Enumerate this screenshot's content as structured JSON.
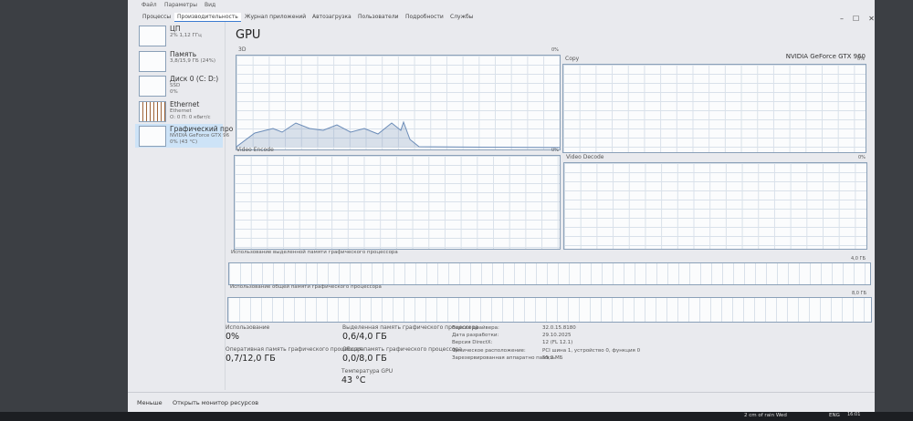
{
  "menu": [
    "Файл",
    "Параметры",
    "Вид"
  ],
  "tabs": [
    "Процессы",
    "Производительность",
    "Журнал приложений",
    "Автозагрузка",
    "Пользователи",
    "Подробности",
    "Службы"
  ],
  "sidebar": [
    {
      "title": "ЦП",
      "lines": [
        "2% 1,12 ГГц"
      ]
    },
    {
      "title": "Память",
      "lines": [
        "3,8/15,9 ГБ (24%)"
      ]
    },
    {
      "title": "Диск 0 (C: D:)",
      "lines": [
        "SSD",
        "0%"
      ]
    },
    {
      "title": "Ethernet",
      "lines": [
        "Ethernet",
        "О: 0 П: 0 кбит/с"
      ]
    },
    {
      "title": "Графический про",
      "lines": [
        "NVIDIA GeForce GTX 96",
        "0% (43 °C)"
      ]
    }
  ],
  "header": {
    "title": "GPU",
    "device": "NVIDIA GeForce GTX 960"
  },
  "graphs": [
    {
      "label": "3D",
      "max": "0%"
    },
    {
      "label": "Copy",
      "max": "0%"
    },
    {
      "label": "Video Encode",
      "max": "0%"
    },
    {
      "label": "Video Decode",
      "max": "0%"
    }
  ],
  "memory_bars": [
    {
      "label": "Использование выделенной памяти графического процессора",
      "max": "4,0 ГБ"
    },
    {
      "label": "Использование общей памяти графического процессора",
      "max": "8,0 ГБ"
    }
  ],
  "stats": [
    {
      "label": "Использование",
      "value": "0%"
    },
    {
      "label": "Оперативная память графического процессора",
      "value": "0,7/12,0 ГБ"
    },
    {
      "label": "Выделенная память графического процессора",
      "value": "0,6/4,0 ГБ"
    },
    {
      "label": "Общая память графического процессора",
      "value": "0,0/8,0 ГБ"
    },
    {
      "label": "Температура GPU",
      "value": "43 °C"
    }
  ],
  "details": [
    {
      "label": "Версия драйвера:",
      "value": "32.0.15.8180"
    },
    {
      "label": "Дата разработки:",
      "value": "29.10.2025"
    },
    {
      "label": "Версия DirectX:",
      "value": "12 (FL 12.1)"
    },
    {
      "label": "Физическое расположение:",
      "value": "PCI шина 1, устройство 0, функция 0"
    },
    {
      "label": "Зарезервированная аппаратно память:",
      "value": "55,2 МБ"
    }
  ],
  "footer": {
    "less": "Меньше",
    "monitor": "Открыть монитор ресурсов"
  },
  "taskbar": {
    "weather": "2 cm of rain Wed",
    "lang": "ENG",
    "time": "16:01"
  }
}
